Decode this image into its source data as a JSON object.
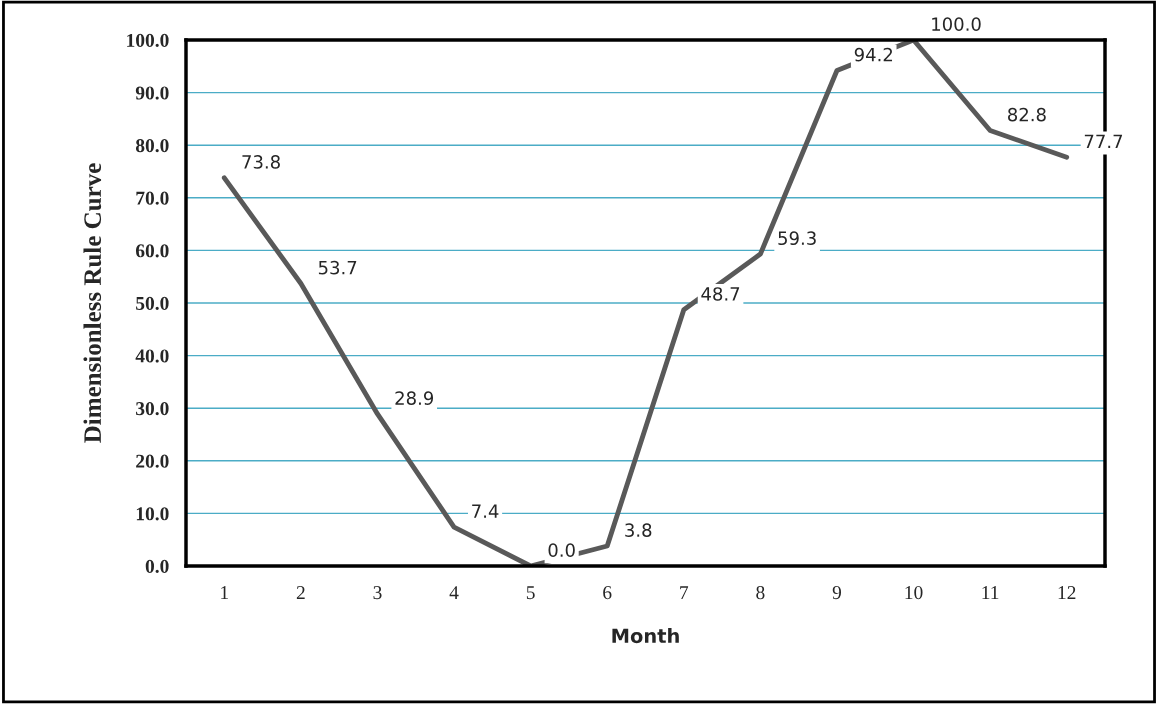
{
  "chart_data": {
    "type": "line",
    "xlabel": "Month",
    "ylabel": "Dimensionless Rule Curve",
    "categories": [
      "1",
      "2",
      "3",
      "4",
      "5",
      "6",
      "7",
      "8",
      "9",
      "10",
      "11",
      "12"
    ],
    "series": [
      {
        "color": "#595959",
        "values": [
          73.8,
          53.7,
          28.9,
          7.4,
          0.0,
          3.8,
          48.7,
          59.3,
          94.2,
          100.0,
          82.8,
          77.7
        ],
        "value_labels": [
          "73.8",
          "53.7",
          "28.9",
          "7.4",
          "0.0",
          "3.8",
          "48.7",
          "59.3",
          "94.2",
          "100.0",
          "82.8",
          "77.7"
        ]
      }
    ],
    "ylim": [
      0,
      100
    ],
    "yticks": [
      {
        "value": 0,
        "label": "0.0"
      },
      {
        "value": 10,
        "label": "10.0"
      },
      {
        "value": 20,
        "label": "20.0"
      },
      {
        "value": 30,
        "label": "30.0"
      },
      {
        "value": 40,
        "label": "40.0"
      },
      {
        "value": 50,
        "label": "50.0"
      },
      {
        "value": 60,
        "label": "60.0"
      },
      {
        "value": 70,
        "label": "70.0"
      },
      {
        "value": 80,
        "label": "80.0"
      },
      {
        "value": 90,
        "label": "90.0"
      },
      {
        "value": 100,
        "label": "100.0"
      }
    ],
    "grid": "y",
    "marker": "none",
    "line_style": "solid"
  }
}
